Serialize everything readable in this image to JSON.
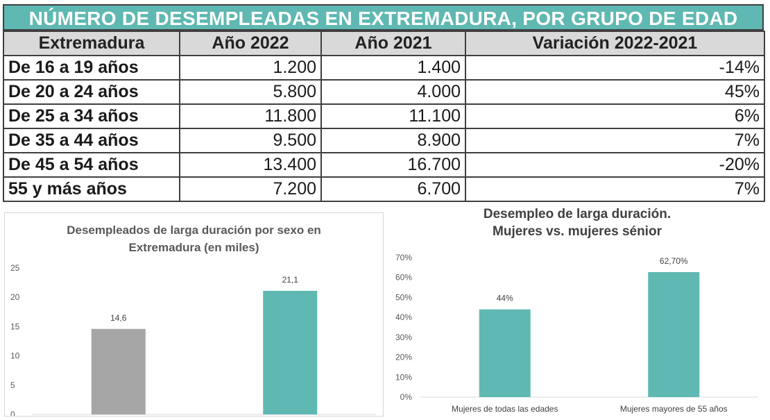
{
  "table": {
    "title": "NÚMERO DE DESEMPLEADAS EN EXTREMADURA, POR GRUPO DE EDAD",
    "headers": [
      "Extremadura",
      "Año 2022",
      "Año 2021",
      "Variación 2022-2021"
    ],
    "rows": [
      {
        "group": "De 16 a 19 años",
        "y2022": "1.200",
        "y2021": "1.400",
        "var": "-14%"
      },
      {
        "group": "De 20 a 24 años",
        "y2022": "5.800",
        "y2021": "4.000",
        "var": "45%"
      },
      {
        "group": "De 25 a 34 años",
        "y2022": "11.800",
        "y2021": "11.100",
        "var": "6%"
      },
      {
        "group": "De 35 a 44 años",
        "y2022": "9.500",
        "y2021": "8.900",
        "var": "7%"
      },
      {
        "group": "De 45 a 54 años",
        "y2022": "13.400",
        "y2021": "16.700",
        "var": "-20%"
      },
      {
        "group": "55 y más años",
        "y2022": "7.200",
        "y2021": "6.700",
        "var": "7%"
      }
    ]
  },
  "chart_data": [
    {
      "type": "bar",
      "title_lines": [
        "Desempleados de larga duración por sexo en",
        "Extremadura (en miles)"
      ],
      "categories": [
        "",
        ""
      ],
      "values": [
        14.6,
        21.1
      ],
      "data_labels": [
        "14,6",
        "21,1"
      ],
      "colors": [
        "#a6a6a6",
        "#5fb8b2"
      ],
      "ylim": [
        0,
        25
      ],
      "yticks": [
        0,
        5,
        10,
        15,
        20,
        25
      ],
      "ytick_labels": [
        "0",
        "5",
        "10",
        "15",
        "20",
        "25"
      ],
      "grid": false
    },
    {
      "type": "bar",
      "title_lines": [
        "Desempleo de larga duración.",
        "Mujeres vs. mujeres sénior"
      ],
      "categories": [
        "Mujeres de todas las edades",
        "Mujeres mayores de 55 años"
      ],
      "values": [
        44,
        62.7
      ],
      "data_labels": [
        "44%",
        "62,70%"
      ],
      "colors": [
        "#5fb8b2",
        "#5fb8b2"
      ],
      "ylim": [
        0,
        70
      ],
      "yticks": [
        0,
        10,
        20,
        30,
        40,
        50,
        60,
        70
      ],
      "ytick_labels": [
        "0%",
        "10%",
        "20%",
        "30%",
        "40%",
        "50%",
        "60%",
        "70%"
      ],
      "grid": false
    }
  ]
}
